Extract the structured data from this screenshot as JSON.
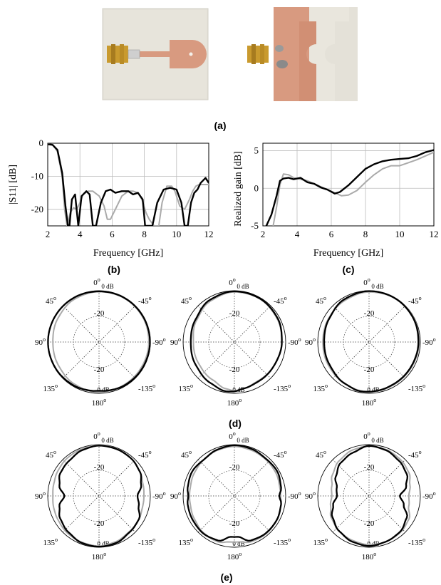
{
  "panel_labels": {
    "a": "(a)",
    "b": "(b)",
    "c": "(c)",
    "d": "(d)",
    "e": "(e)"
  },
  "polar_labels": {
    "top": "0",
    "bottom": "180",
    "deg": "o",
    "left_top": "45",
    "right_top": "-45",
    "left_mid": "90",
    "right_mid": "-90",
    "left_bot": "135",
    "right_bot": "-135",
    "r_outer": "0 dB",
    "r_inner": "-20"
  },
  "colors": {
    "measured": "#000000",
    "simulated": "#aaaaaa",
    "grid": "#bdbdbd",
    "copper": "#d89a80",
    "substrate": "#e4e1d8",
    "connector": "#c99a2e"
  },
  "chart_data": [
    {
      "type": "line",
      "id": "b",
      "xlabel": "Frequency [GHz]",
      "ylabel": "|S11| [dB]",
      "xlim": [
        2,
        12
      ],
      "ylim": [
        -25,
        0
      ],
      "xticks": [
        "2",
        "4",
        "6",
        "8",
        "10",
        "12"
      ],
      "yticks": [
        "0",
        "-10",
        "-20"
      ],
      "grid": true,
      "series": [
        {
          "style": "black",
          "x": [
            2,
            2.3,
            2.6,
            2.9,
            3.1,
            3.25,
            3.35,
            3.5,
            3.7,
            3.9,
            4.1,
            4.4,
            4.6,
            4.8,
            5.0,
            5.3,
            5.6,
            5.9,
            6.2,
            6.6,
            7.0,
            7.3,
            7.6,
            7.9,
            8.05,
            8.2,
            8.5,
            8.8,
            9.2,
            9.6,
            10.0,
            10.3,
            10.5,
            10.7,
            10.9,
            11.1,
            11.3,
            11.5,
            11.8,
            12
          ],
          "y": [
            -0.3,
            -0.5,
            -2,
            -9,
            -19,
            -25,
            -25,
            -17,
            -15.5,
            -25,
            -16,
            -14.5,
            -15.5,
            -25,
            -25,
            -18,
            -14.5,
            -14,
            -15,
            -14.5,
            -14.5,
            -15.5,
            -15,
            -17,
            -25,
            -25,
            -25,
            -18,
            -14,
            -13.5,
            -14,
            -18,
            -25,
            -25,
            -18,
            -15,
            -14,
            -12,
            -10.5,
            -12
          ]
        },
        {
          "style": "gray",
          "x": [
            2,
            2.3,
            2.6,
            2.9,
            3.05,
            3.2,
            3.4,
            3.6,
            3.8,
            4.0,
            4.2,
            4.5,
            4.8,
            5.2,
            5.5,
            5.7,
            5.9,
            6.2,
            6.6,
            7.0,
            7.3,
            7.6,
            7.85,
            8.1,
            8.3,
            8.6,
            8.9,
            9.1,
            9.4,
            9.7,
            9.9,
            10.2,
            10.5,
            10.8,
            11.0,
            11.2,
            11.4,
            11.7,
            12
          ],
          "y": [
            -0.2,
            -0.4,
            -2.5,
            -10,
            -20,
            -25,
            -21,
            -19.5,
            -20,
            -18,
            -15.5,
            -14.5,
            -14.5,
            -16,
            -19,
            -23,
            -23,
            -20,
            -16,
            -14.5,
            -14.5,
            -15,
            -17,
            -21,
            -23,
            -25,
            -25,
            -18,
            -13,
            -13,
            -14.5,
            -19,
            -20,
            -17,
            -14.5,
            -13,
            -12.5,
            -12.5,
            -12.5
          ]
        }
      ]
    },
    {
      "type": "line",
      "id": "c",
      "xlabel": "Frequency [GHz]",
      "ylabel": "Realized gain [dB]",
      "xlim": [
        2,
        12
      ],
      "ylim": [
        -5,
        6
      ],
      "xticks": [
        "2",
        "4",
        "6",
        "8",
        "10",
        "12"
      ],
      "yticks": [
        "5",
        "0",
        "-5"
      ],
      "grid": true,
      "series": [
        {
          "style": "black",
          "x": [
            2.2,
            2.5,
            2.8,
            3.0,
            3.2,
            3.5,
            3.8,
            4.2,
            4.6,
            5.0,
            5.4,
            5.8,
            6.2,
            6.5,
            7.0,
            7.5,
            8.0,
            8.5,
            9.0,
            9.5,
            10.0,
            10.5,
            11.0,
            11.5,
            12
          ],
          "y": [
            -5,
            -3.5,
            -1,
            1,
            1.3,
            1.4,
            1.2,
            1.4,
            0.8,
            0.6,
            0.1,
            -0.2,
            -0.7,
            -0.5,
            0.4,
            1.5,
            2.6,
            3.2,
            3.6,
            3.8,
            3.9,
            4.0,
            4.3,
            4.8,
            5.1
          ]
        },
        {
          "style": "gray",
          "x": [
            2.6,
            2.8,
            3.0,
            3.2,
            3.5,
            3.8,
            4.2,
            4.6,
            5.0,
            5.4,
            5.8,
            6.2,
            6.6,
            7.0,
            7.5,
            8.0,
            8.5,
            9.0,
            9.5,
            10.0,
            10.5,
            11.0,
            11.5,
            12
          ],
          "y": [
            -5,
            -2.5,
            0.5,
            1.9,
            1.8,
            1.4,
            1.2,
            1.0,
            0.6,
            0.2,
            -0.2,
            -0.6,
            -1.0,
            -0.9,
            -0.3,
            0.8,
            1.8,
            2.6,
            3.0,
            3.0,
            3.4,
            3.8,
            4.3,
            4.8
          ]
        }
      ]
    },
    {
      "type": "polar",
      "id": "d1",
      "rlim": [
        -40,
        0
      ],
      "series": [
        {
          "style": "black",
          "angles": [
            0,
            30,
            60,
            90,
            120,
            150,
            170,
            180,
            190,
            210,
            240,
            270,
            300,
            330,
            360
          ],
          "values": [
            -0.5,
            -0.3,
            -0.3,
            -0.2,
            -0.4,
            -0.8,
            -1.5,
            -2,
            -1.5,
            -0.8,
            -0.5,
            -0.3,
            -0.3,
            -0.3,
            -0.5
          ]
        },
        {
          "style": "gray",
          "angles": [
            0,
            30,
            60,
            90,
            120,
            150,
            170,
            180,
            190,
            210,
            240,
            270,
            300,
            330,
            360
          ],
          "values": [
            -0.8,
            -1.5,
            -3,
            -4,
            -3.5,
            -2,
            -1,
            -1,
            -1,
            -1.3,
            -1.5,
            -1.2,
            -0.8,
            -0.6,
            -0.8
          ]
        }
      ]
    },
    {
      "type": "polar",
      "id": "d2",
      "rlim": [
        -40,
        0
      ],
      "series": [
        {
          "style": "black",
          "angles": [
            0,
            30,
            60,
            90,
            120,
            150,
            170,
            180,
            190,
            210,
            240,
            270,
            300,
            330,
            360
          ],
          "values": [
            -0.5,
            -2,
            -5,
            -6,
            -5,
            -3,
            -1,
            -1.5,
            -3,
            -4,
            -4,
            -3,
            -1.5,
            -0.7,
            -0.5
          ]
        },
        {
          "style": "gray",
          "angles": [
            0,
            30,
            60,
            90,
            120,
            150,
            170,
            180,
            190,
            210,
            240,
            270,
            300,
            330,
            360
          ],
          "values": [
            -1,
            -3,
            -6,
            -8,
            -7.5,
            -6,
            -3,
            -2,
            -3,
            -4.5,
            -4,
            -3,
            -2,
            -1,
            -1
          ]
        }
      ]
    },
    {
      "type": "polar",
      "id": "d3",
      "rlim": [
        -40,
        0
      ],
      "series": [
        {
          "style": "black",
          "angles": [
            0,
            30,
            60,
            90,
            120,
            150,
            170,
            180,
            190,
            210,
            240,
            270,
            300,
            330,
            360
          ],
          "values": [
            -0.3,
            -1.5,
            -4,
            -5,
            -4.5,
            -2.5,
            -1,
            -1.3,
            -1.5,
            -2,
            -2,
            -1.5,
            -0.8,
            -0.3,
            -0.3
          ]
        },
        {
          "style": "gray",
          "angles": [
            0,
            30,
            60,
            90,
            120,
            150,
            170,
            180,
            190,
            210,
            240,
            270,
            300,
            330,
            360
          ],
          "values": [
            -1,
            -2.5,
            -3.5,
            -4,
            -3.5,
            -2.5,
            -1.5,
            -1.2,
            -1.2,
            -1.5,
            -1.5,
            -1,
            -0.5,
            -0.5,
            -1
          ]
        }
      ]
    },
    {
      "type": "polar",
      "id": "e1",
      "rlim": [
        -40,
        0
      ],
      "series": [
        {
          "style": "black",
          "angles": [
            0,
            20,
            40,
            60,
            75,
            90,
            105,
            120,
            140,
            160,
            180,
            200,
            220,
            240,
            255,
            270,
            285,
            300,
            320,
            340,
            360
          ],
          "values": [
            -0.8,
            -2,
            -4,
            -5,
            -8,
            -13,
            -8,
            -5,
            -3,
            -1,
            -0.5,
            -1,
            -3,
            -4,
            -8,
            -10,
            -6,
            -3,
            -1.5,
            -1,
            -0.8
          ]
        },
        {
          "style": "gray",
          "angles": [
            0,
            20,
            40,
            60,
            75,
            90,
            105,
            120,
            140,
            160,
            180,
            200,
            220,
            240,
            255,
            270,
            285,
            300,
            320,
            340,
            360
          ],
          "values": [
            -0.5,
            -1,
            -1.5,
            -2.5,
            -3.5,
            -4,
            -3.5,
            -3,
            -2,
            -1.5,
            -1,
            -2,
            -3.5,
            -4,
            -5,
            -5,
            -4.5,
            -3,
            -1.5,
            -0.7,
            -0.5
          ]
        }
      ]
    },
    {
      "type": "polar",
      "id": "e2",
      "rlim": [
        -40,
        0
      ],
      "series": [
        {
          "style": "black",
          "angles": [
            0,
            20,
            40,
            60,
            80,
            90,
            100,
            120,
            140,
            160,
            175,
            180,
            185,
            200,
            220,
            240,
            260,
            270,
            280,
            300,
            320,
            340,
            360
          ],
          "values": [
            -0.5,
            -1.5,
            -3,
            -2,
            -3,
            -4,
            -3,
            -2.5,
            -2,
            -3,
            -8,
            -8,
            -8,
            -3,
            -2,
            -2,
            -3,
            -5,
            -3,
            -1.5,
            -2,
            -1,
            -0.5
          ]
        },
        {
          "style": "gray",
          "angles": [
            0,
            20,
            40,
            60,
            80,
            90,
            100,
            120,
            140,
            160,
            175,
            180,
            185,
            200,
            220,
            240,
            260,
            270,
            280,
            300,
            320,
            340,
            360
          ],
          "values": [
            -1.5,
            -2,
            -3,
            -4,
            -5,
            -5,
            -5,
            -4,
            -2.5,
            -2,
            -4,
            -4,
            -4,
            -2,
            -1.5,
            -2,
            -3,
            -4,
            -4,
            -3,
            -2.5,
            -2,
            -1.5
          ]
        }
      ]
    },
    {
      "type": "polar",
      "id": "e3",
      "rlim": [
        -40,
        0
      ],
      "series": [
        {
          "style": "black",
          "angles": [
            0,
            20,
            40,
            60,
            75,
            90,
            105,
            120,
            140,
            160,
            180,
            200,
            220,
            240,
            255,
            270,
            285,
            300,
            320,
            340,
            360
          ],
          "values": [
            -1,
            -4,
            -6,
            -10,
            -14,
            -15,
            -11,
            -7,
            -4,
            -2,
            -1,
            -2,
            -3,
            -6,
            -12,
            -16,
            -10,
            -6,
            -4,
            -2,
            -1
          ]
        },
        {
          "style": "gray",
          "angles": [
            0,
            20,
            40,
            60,
            75,
            90,
            105,
            120,
            140,
            160,
            180,
            200,
            220,
            240,
            255,
            270,
            285,
            300,
            320,
            340,
            360
          ],
          "values": [
            -1,
            -2,
            -4,
            -7,
            -10,
            -11,
            -9,
            -6,
            -4,
            -3,
            -2,
            -2,
            -2.5,
            -4,
            -8,
            -9,
            -7,
            -4,
            -2.5,
            -1.5,
            -1
          ]
        }
      ]
    }
  ]
}
